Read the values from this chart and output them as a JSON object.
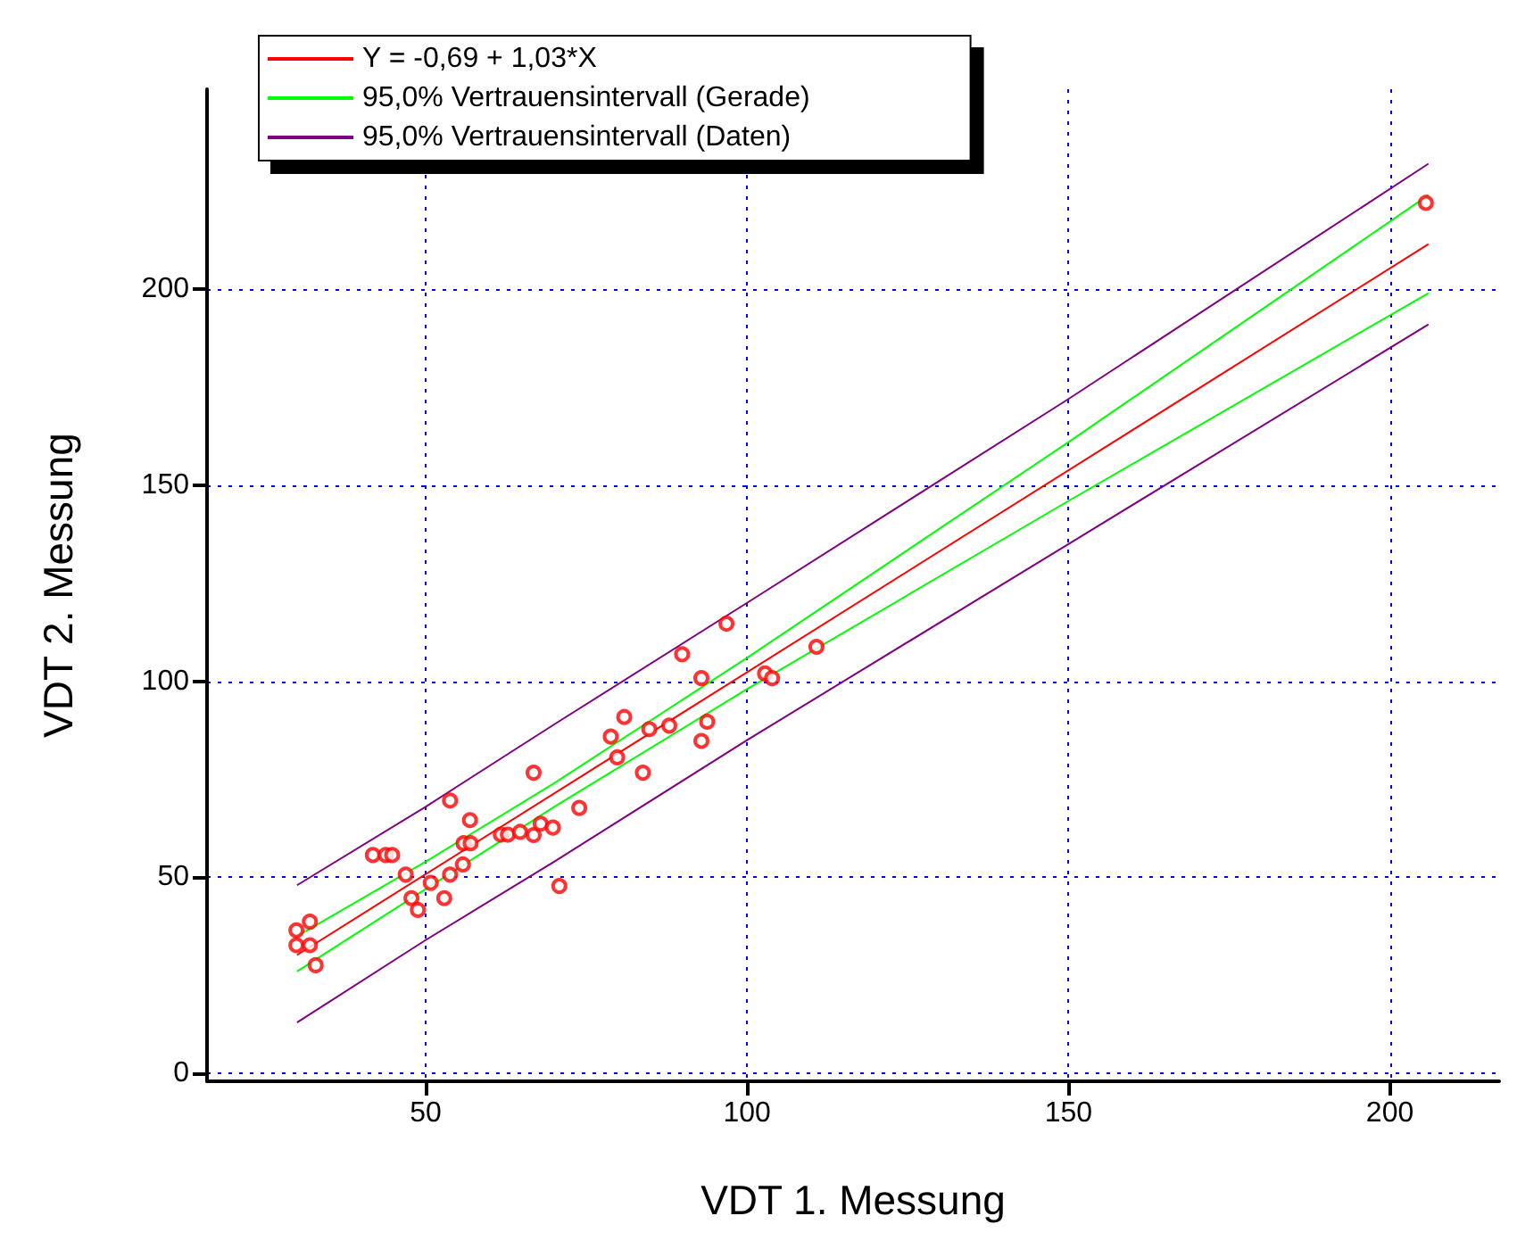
{
  "chart_data": {
    "type": "scatter",
    "xlabel": "VDT 1. Messung",
    "ylabel": "VDT 2. Messung",
    "xlim": [
      16,
      217
    ],
    "ylim": [
      -2,
      251
    ],
    "xticks": [
      50,
      100,
      150,
      200
    ],
    "yticks": [
      0,
      50,
      100,
      150,
      200
    ],
    "grid": true,
    "legend": "top left",
    "series": [
      {
        "marker": "circle",
        "color": "#ff0000",
        "x": [
          29.9,
          29.9,
          32,
          32,
          32.9,
          41.8,
          43.8,
          44.8,
          46.9,
          47.8,
          48.8,
          50.8,
          52.9,
          53.8,
          53.8,
          55.8,
          56.9,
          55.9,
          57,
          61.7,
          62.8,
          64.7,
          66.8,
          66.8,
          67.9,
          69.8,
          70.8,
          73.9,
          79.8,
          83.8,
          78.8,
          80.9,
          84.8,
          87.9,
          92.9,
          93.8,
          92.9,
          89.9,
          96.8,
          102.8,
          103.9,
          110.8,
          205.6
        ],
        "values": [
          36.5,
          32.7,
          38.7,
          32.7,
          27.6,
          55.7,
          55.7,
          55.7,
          50.7,
          44.7,
          41.7,
          48.6,
          44.7,
          69.6,
          50.7,
          53.3,
          64.6,
          58.7,
          58.7,
          60.9,
          60.9,
          61.6,
          60.8,
          76.7,
          63.7,
          62.7,
          47.8,
          67.7,
          80.6,
          76.7,
          85.9,
          90.9,
          87.8,
          88.7,
          84.8,
          89.7,
          100.8,
          106.9,
          114.7,
          102,
          100.8,
          108.8,
          222
        ]
      },
      {
        "type": "line",
        "name": "Y = -0,69 + 1,03*X",
        "color": "#ff0000",
        "x": [
          30,
          206
        ],
        "values": [
          30.2,
          211.5
        ]
      },
      {
        "type": "line",
        "name": "95,0% Vertrauensintervall (Gerade)",
        "color": "#00ff00",
        "x": [
          30,
          50,
          70,
          100,
          150,
          206
        ],
        "values": [
          35,
          54,
          74,
          106,
          161,
          224
        ]
      },
      {
        "type": "line",
        "color": "#00ff00",
        "x": [
          30,
          50,
          70,
          100,
          150,
          206
        ],
        "values": [
          26,
          47,
          68,
          98,
          146,
          199
        ]
      },
      {
        "type": "line",
        "name": "95,0% Vertrauensintervall (Daten)",
        "color": "#800080",
        "x": [
          30,
          50,
          70,
          100,
          150,
          206
        ],
        "values": [
          48,
          68,
          89,
          120,
          172,
          232
        ]
      },
      {
        "type": "line",
        "color": "#800080",
        "x": [
          30,
          50,
          70,
          100,
          150,
          206
        ],
        "values": [
          13,
          34,
          54,
          85,
          135,
          191
        ]
      }
    ]
  }
}
